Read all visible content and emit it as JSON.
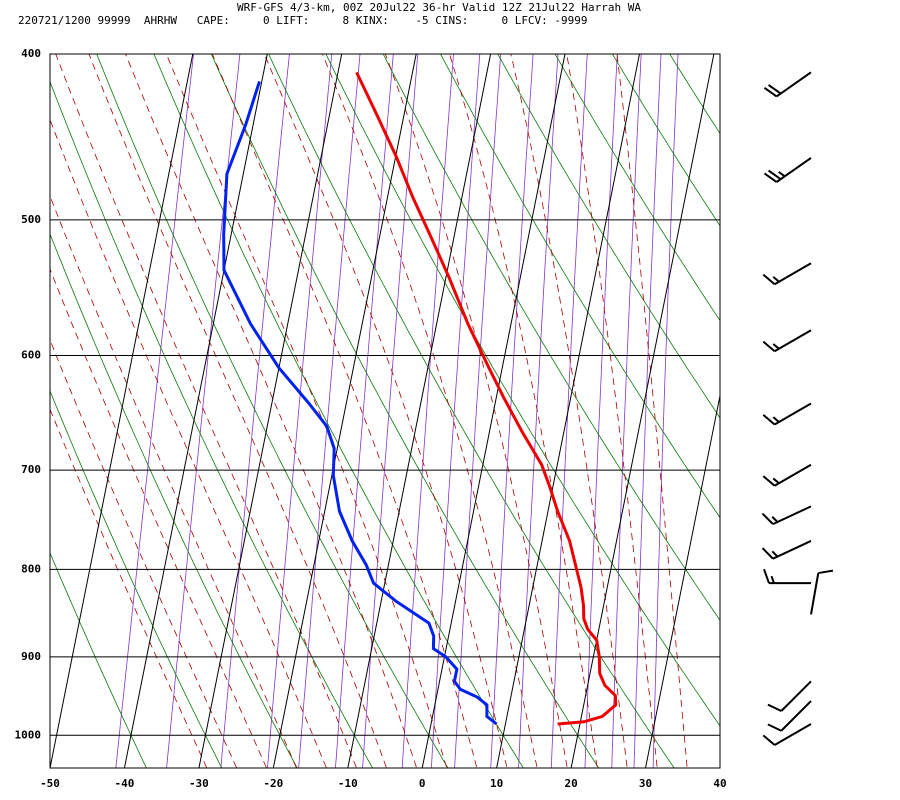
{
  "header": {
    "title": "WRF-GFS 4/3-km, 00Z 20Jul22 36-hr Valid 12Z 21Jul22 Harrah WA",
    "stats": "220721/1200 99999  AHRHW   CAPE:     0 LIFT:     8 KINX:    -5 CINS:     0 LFCV: -9999"
  },
  "chart_data": {
    "type": "line",
    "title": "WRF-GFS 4/3-km, 00Z 20Jul22 36-hr Valid 12Z 21Jul22 Harrah WA",
    "xlabel": "",
    "ylabel": "",
    "x_ticks": [
      -50,
      -40,
      -30,
      -20,
      -10,
      0,
      10,
      20,
      30,
      40
    ],
    "y_ticks": [
      400,
      500,
      600,
      700,
      800,
      900,
      1000
    ],
    "xlim": [
      -50,
      40
    ],
    "ylim": [
      1045,
      400
    ],
    "y_scale": "log",
    "skew": "temperature isotherms skewed to the right",
    "grid": true,
    "series": [
      {
        "role": "temperature",
        "color": "#ee0000",
        "points": [
          [
            17.0,
            985
          ],
          [
            20.5,
            982
          ],
          [
            22.8,
            975
          ],
          [
            24.3,
            960
          ],
          [
            24.0,
            948
          ],
          [
            22.3,
            935
          ],
          [
            21.3,
            920
          ],
          [
            20.8,
            900
          ],
          [
            20.0,
            880
          ],
          [
            18.5,
            867
          ],
          [
            17.7,
            855
          ],
          [
            17.3,
            840
          ],
          [
            16.5,
            820
          ],
          [
            15.4,
            800
          ],
          [
            13.7,
            770
          ],
          [
            11.3,
            740
          ],
          [
            9.5,
            715
          ],
          [
            7.9,
            695
          ],
          [
            4.4,
            665
          ],
          [
            1.0,
            635
          ],
          [
            -1.8,
            610
          ],
          [
            -5.8,
            575
          ],
          [
            -9.6,
            540
          ],
          [
            -13.3,
            510
          ],
          [
            -16.6,
            485
          ],
          [
            -19.8,
            460
          ],
          [
            -23.5,
            435
          ],
          [
            -27.5,
            410
          ]
        ]
      },
      {
        "role": "dewpoint",
        "color": "#0022ee",
        "points": [
          [
            8.8,
            985
          ],
          [
            7.3,
            975
          ],
          [
            7.0,
            960
          ],
          [
            5.5,
            950
          ],
          [
            3.0,
            940
          ],
          [
            2.0,
            930
          ],
          [
            2.0,
            915
          ],
          [
            0.2,
            900
          ],
          [
            -1.7,
            890
          ],
          [
            -2.0,
            875
          ],
          [
            -3.0,
            860
          ],
          [
            -8.0,
            835
          ],
          [
            -11.5,
            815
          ],
          [
            -13.0,
            795
          ],
          [
            -15.5,
            770
          ],
          [
            -18.0,
            740
          ],
          [
            -19.8,
            705
          ],
          [
            -20.4,
            680
          ],
          [
            -22.0,
            660
          ],
          [
            -25.0,
            640
          ],
          [
            -30.0,
            610
          ],
          [
            -35.0,
            575
          ],
          [
            -40.0,
            535
          ],
          [
            -41.0,
            510
          ],
          [
            -42.2,
            470
          ],
          [
            -41.0,
            440
          ],
          [
            -40.3,
            415
          ]
        ]
      }
    ],
    "wind_barbs": [
      {
        "pressure": 410,
        "direction": 235,
        "speed": 20
      },
      {
        "pressure": 460,
        "direction": 235,
        "speed": 25
      },
      {
        "pressure": 530,
        "direction": 240,
        "speed": 15
      },
      {
        "pressure": 580,
        "direction": 240,
        "speed": 15
      },
      {
        "pressure": 640,
        "direction": 240,
        "speed": 15
      },
      {
        "pressure": 695,
        "direction": 240,
        "speed": 15
      },
      {
        "pressure": 735,
        "direction": 245,
        "speed": 15
      },
      {
        "pressure": 770,
        "direction": 245,
        "speed": 15
      },
      {
        "pressure": 815,
        "direction": 270,
        "speed": 15
      },
      {
        "pressure": 850,
        "direction": 10,
        "speed": 10
      },
      {
        "pressure": 930,
        "direction": 225,
        "speed": 10
      },
      {
        "pressure": 955,
        "direction": 225,
        "speed": 10
      },
      {
        "pressure": 985,
        "direction": 240,
        "speed": 10
      }
    ],
    "colors": {
      "dry_adiabat": "#0a7a0a",
      "moist_adiabat": "#aa0000",
      "mixing_ratio": "#8833cc",
      "grid": "#000000"
    }
  }
}
